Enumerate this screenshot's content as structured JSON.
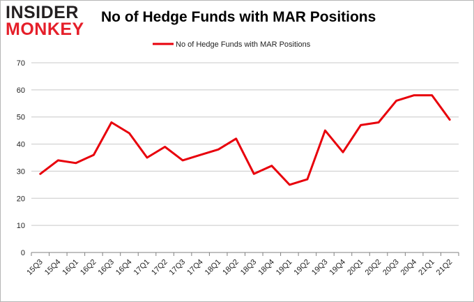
{
  "logo": {
    "line1": "INSIDER",
    "line2": "MONKEY"
  },
  "colors": {
    "series": "#e8000b",
    "grid": "#c8c8c8",
    "axis": "#808080",
    "logo_dark": "#231f20",
    "logo_red": "#e51f2a"
  },
  "chart_data": {
    "type": "line",
    "title": "No of Hedge Funds with MAR Positions",
    "xlabel": "",
    "ylabel": "",
    "ylim": [
      0,
      70
    ],
    "yticks": [
      0,
      10,
      20,
      30,
      40,
      50,
      60,
      70
    ],
    "grid": "horizontal",
    "legend_position": "top-center",
    "categories": [
      "15Q3",
      "15Q4",
      "16Q1",
      "16Q2",
      "16Q3",
      "16Q4",
      "17Q1",
      "17Q2",
      "17Q3",
      "17Q4",
      "18Q1",
      "18Q2",
      "18Q3",
      "18Q4",
      "19Q1",
      "19Q2",
      "19Q3",
      "19Q4",
      "20Q1",
      "20Q2",
      "20Q3",
      "20Q4",
      "21Q1",
      "21Q2"
    ],
    "series": [
      {
        "name": "No of Hedge Funds with MAR Positions",
        "color": "#e8000b",
        "values": [
          29,
          34,
          33,
          36,
          48,
          44,
          35,
          39,
          34,
          36,
          38,
          42,
          29,
          32,
          25,
          27,
          45,
          37,
          47,
          48,
          56,
          58,
          58,
          49
        ]
      }
    ]
  }
}
